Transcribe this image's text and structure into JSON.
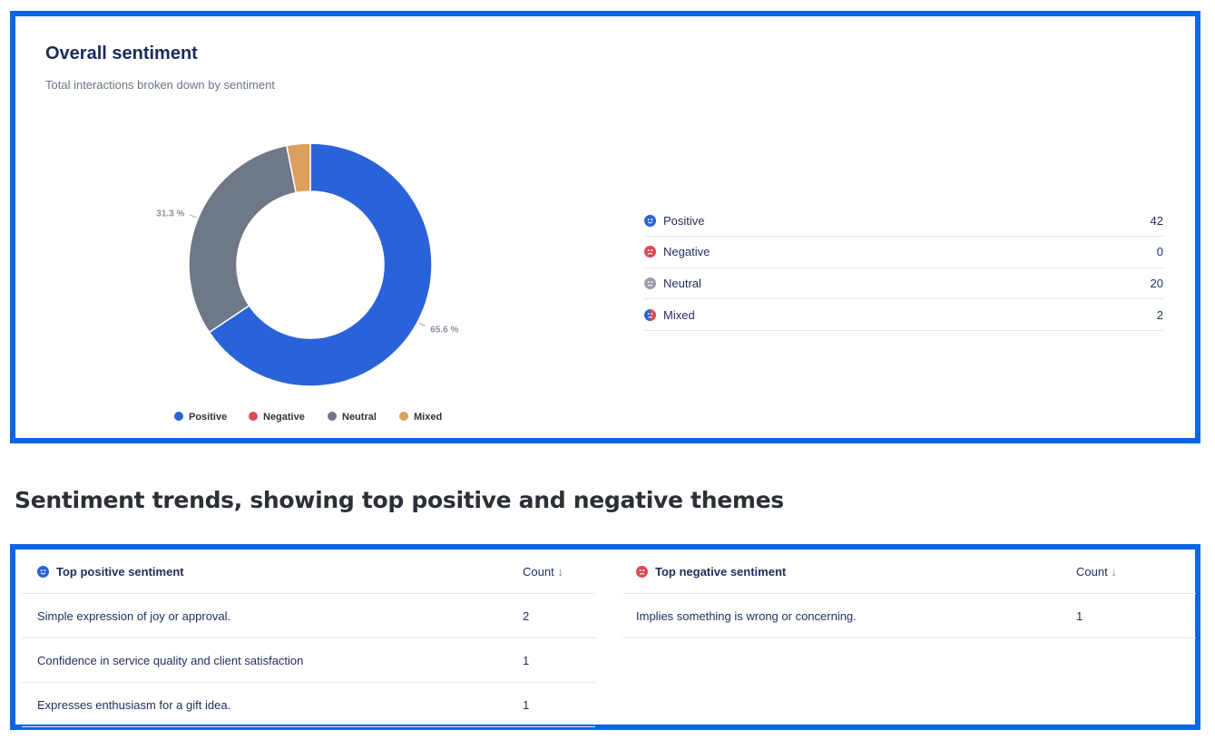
{
  "overall": {
    "title": "Overall sentiment",
    "subtitle": "Total interactions broken down by sentiment",
    "legend_table": [
      {
        "label": "Positive",
        "value": "42",
        "icon": "smile-face-icon",
        "color": "#2a62d9"
      },
      {
        "label": "Negative",
        "value": "0",
        "icon": "sad-face-icon",
        "color": "#db4a55"
      },
      {
        "label": "Neutral",
        "value": "20",
        "icon": "neutral-face-icon",
        "color": "#9a9ea8"
      },
      {
        "label": "Mixed",
        "value": "2",
        "icon": "mixed-face-icon",
        "color": "#2a62d9"
      }
    ]
  },
  "chart_data": {
    "type": "pie",
    "donut": true,
    "categories": [
      "Positive",
      "Negative",
      "Neutral",
      "Mixed"
    ],
    "values": [
      42,
      0,
      20,
      2
    ],
    "colors": [
      "#2a62d9",
      "#db4a55",
      "#6e7889",
      "#dd9f5e"
    ],
    "data_labels": [
      {
        "category": "Positive",
        "text": "65.6 %"
      },
      {
        "category": "Neutral",
        "text": "31.3 %"
      }
    ],
    "legend": [
      "Positive",
      "Negative",
      "Neutral",
      "Mixed"
    ],
    "legend_position": "bottom"
  },
  "trends": {
    "heading": "Sentiment trends, showing top positive and negative themes",
    "positive": {
      "header": "Top positive sentiment",
      "count_header": "Count",
      "rows": [
        {
          "text": "Simple expression of joy or approval.",
          "count": "2"
        },
        {
          "text": "Confidence in service quality and client satisfaction",
          "count": "1"
        },
        {
          "text": "Expresses enthusiasm for a gift idea.",
          "count": "1"
        }
      ]
    },
    "negative": {
      "header": "Top negative sentiment",
      "count_header": "Count",
      "rows": [
        {
          "text": "Implies something is wrong or concerning.",
          "count": "1"
        }
      ]
    }
  }
}
